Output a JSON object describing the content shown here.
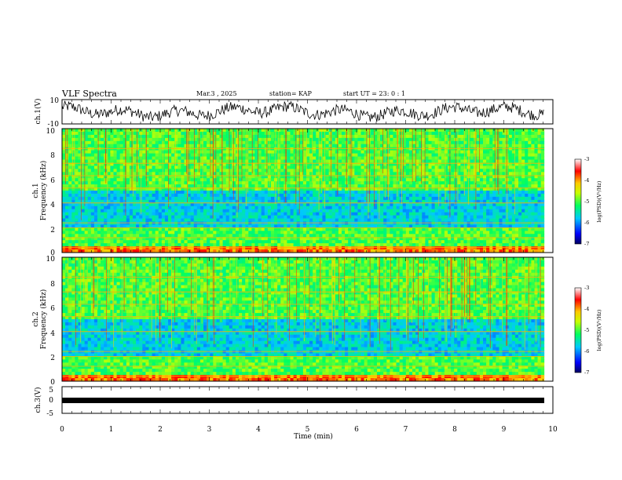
{
  "header": {
    "title": "VLF Spectra",
    "date": "Mar.3  , 2025",
    "station": "station= KAP",
    "start": "start  UT  =   23: 0   : 1"
  },
  "chart_data": [
    {
      "id": "ch1-waveform",
      "type": "line",
      "ylabel": "ch.1(V)",
      "ylim": [
        -10,
        10
      ],
      "yticks": [
        "10",
        "-10"
      ],
      "xlim": [
        0,
        10
      ],
      "x_end": 9.82
    },
    {
      "id": "ch1-spectrogram",
      "type": "heatmap",
      "ylabel": "Frequency  (kHz)",
      "ylabel_top": "ch.1",
      "ylim": [
        0,
        10
      ],
      "yticks": [
        "0",
        "2",
        "4",
        "6",
        "8",
        "10"
      ],
      "colorbar": {
        "label": "log(PSD)(V²/Hz)",
        "range": [
          -7,
          -3
        ],
        "ticks": [
          "-3",
          "-4",
          "-5",
          "-6",
          "-7"
        ]
      }
    },
    {
      "id": "ch2-spectrogram",
      "type": "heatmap",
      "ylabel": "Frequency  (kHz)",
      "ylabel_top": "ch.2",
      "ylim": [
        0,
        10
      ],
      "yticks": [
        "0",
        "2",
        "4",
        "6",
        "8",
        "10"
      ],
      "colorbar": {
        "label": "log(PSD)(V²/Hz)",
        "range": [
          -7,
          -3
        ],
        "ticks": [
          "-3",
          "-4",
          "-5",
          "-6",
          "-7"
        ]
      }
    },
    {
      "id": "ch3-trace",
      "type": "line",
      "ylabel": "ch.3(V)",
      "ylim": [
        -5,
        5
      ],
      "yticks": [
        "5",
        "0",
        "-5"
      ],
      "value": -0.5,
      "x_end": 9.82
    }
  ],
  "xaxis": {
    "label": "Time  (min)",
    "range": [
      0,
      10
    ],
    "ticks": [
      "0",
      "1",
      "2",
      "3",
      "4",
      "5",
      "6",
      "7",
      "8",
      "9",
      "10"
    ]
  }
}
